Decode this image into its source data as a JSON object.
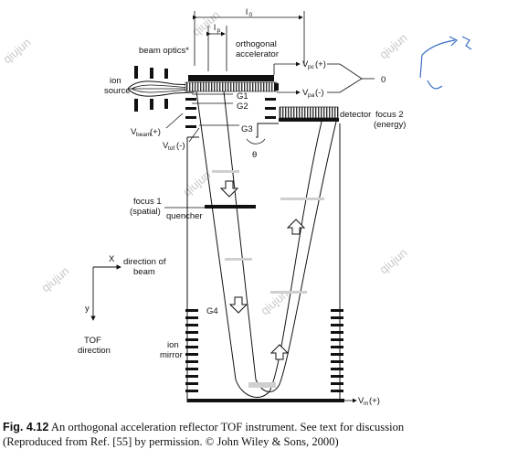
{
  "diagram": {
    "labels": {
      "l0": "l",
      "l0_sub": "0",
      "lp": "l",
      "lp_sub": "p",
      "beam_optics": "beam optics*",
      "orthogonal_accelerator_1": "orthogonal",
      "orthogonal_accelerator_2": "accelerator",
      "ion_source_1": "ion",
      "ion_source_2": "source",
      "vpc": "V",
      "vpc_sub": "pc",
      "vpc_sign": "(+)",
      "vpa": "V",
      "vpa_sub": "pa",
      "vpa_sign": "(-)",
      "zero": "0",
      "g1": "G1",
      "g2": "G2",
      "g3": "G3",
      "g4": "G4",
      "vbeam": "V",
      "vbeam_sub": "beam",
      "vbeam_sign": "(+)",
      "vtof": "V",
      "vtof_sub": "tof",
      "vtof_sign": "(-)",
      "theta": "θ",
      "detector": "detector",
      "focus2_1": "focus 2",
      "focus2_2": "(energy)",
      "focus1_1": "focus 1",
      "focus1_2": "(spatial)",
      "quencher": "quencher",
      "axis_x": "X",
      "axis_y": "y",
      "dir_beam_1": "direction of",
      "dir_beam_2": "beam",
      "tof_dir_1": "TOF",
      "tof_dir_2": "direction",
      "ion_mirror_1": "ion",
      "ion_mirror_2": "mirror",
      "vm": "V",
      "vm_sub": "m",
      "vm_sign": "(+)"
    },
    "watermark": "qiujun"
  },
  "caption": {
    "fig": "Fig. 4.12",
    "line1": " An orthogonal acceleration reflector TOF instrument. See text for discussion",
    "line2": "(Reproduced from Ref. [55] by permission. © John Wiley & Sons, 2000)"
  }
}
